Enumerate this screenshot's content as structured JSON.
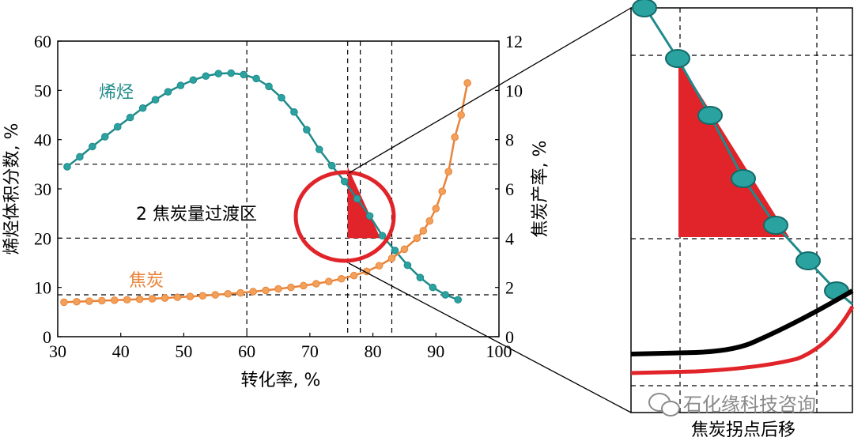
{
  "chart_data": [
    {
      "type": "line",
      "xlabel": "转化率, %",
      "ylabel_left": "烯烃体积分数, %",
      "ylabel_right": "焦炭产率, %",
      "xlim": [
        30,
        100
      ],
      "ylim_left": [
        0,
        60
      ],
      "ylim_right": [
        0,
        12
      ],
      "xticks": [
        "30",
        "40",
        "50",
        "60",
        "70",
        "80",
        "90",
        "100"
      ],
      "yticks_left": [
        "0",
        "10",
        "20",
        "30",
        "40",
        "50",
        "60"
      ],
      "yticks_right": [
        "0",
        "2",
        "4",
        "6",
        "8",
        "10",
        "12"
      ],
      "grid": "dashed reference lines",
      "ref_lines": {
        "x": [
          60,
          76,
          78,
          83
        ],
        "y_left": [
          8.5,
          20,
          35
        ]
      },
      "colors": {
        "olefin": "#1f8a8a",
        "coke": "#e8843a",
        "highlight": "#e0242a"
      },
      "series": [
        {
          "name": "烯烃",
          "axis": "left",
          "x": [
            31.5,
            33.5,
            35.5,
            37.5,
            39.5,
            41.5,
            43.5,
            45.5,
            47.5,
            49.5,
            51.5,
            53.5,
            55.5,
            57.5,
            59.5,
            61.5,
            63.5,
            65.5,
            67.5,
            69.5,
            71.5,
            73.5,
            75.5,
            77.5,
            79.5,
            81.5,
            83.5,
            85.5,
            87.5,
            89.5,
            91.5,
            93.5
          ],
          "values": [
            34.5,
            36.5,
            38.6,
            40.6,
            42.6,
            44.5,
            46.4,
            48.1,
            49.7,
            51.0,
            52.1,
            52.9,
            53.4,
            53.5,
            53.2,
            52.4,
            50.8,
            48.5,
            45.6,
            42.0,
            38.0,
            34.7,
            31.5,
            28.0,
            24.5,
            20.5,
            17.5,
            14.5,
            12.0,
            10.0,
            8.5,
            7.5
          ]
        },
        {
          "name": "焦炭",
          "axis": "right",
          "x": [
            31,
            33,
            35,
            37,
            39,
            41,
            43,
            45,
            47,
            49,
            51,
            53,
            55,
            57,
            59,
            61,
            63,
            65,
            67,
            69,
            71,
            73,
            75,
            77,
            79,
            81,
            83,
            85,
            87,
            88,
            89,
            90,
            91,
            92,
            93,
            94,
            95
          ],
          "values": [
            1.4,
            1.42,
            1.44,
            1.46,
            1.48,
            1.5,
            1.52,
            1.54,
            1.57,
            1.6,
            1.63,
            1.66,
            1.7,
            1.74,
            1.78,
            1.83,
            1.88,
            1.94,
            2.0,
            2.07,
            2.15,
            2.24,
            2.35,
            2.48,
            2.65,
            2.88,
            3.18,
            3.55,
            4.0,
            4.3,
            4.7,
            5.2,
            5.9,
            6.7,
            8.1,
            9.0,
            10.3
          ]
        }
      ],
      "annotations": {
        "label_olefin": "烯烃",
        "label_coke": "焦炭",
        "transition_label": "2 焦炭量过渡区"
      }
    },
    {
      "type": "line",
      "panel": "inset",
      "xlabel": "焦炭拐点后移",
      "series": [
        {
          "name": "",
          "color": "#000000"
        },
        {
          "name": "",
          "color": "#e0242a"
        }
      ]
    }
  ],
  "watermark": {
    "text": "石化缘科技咨询",
    "icon": "wechat-icon"
  }
}
